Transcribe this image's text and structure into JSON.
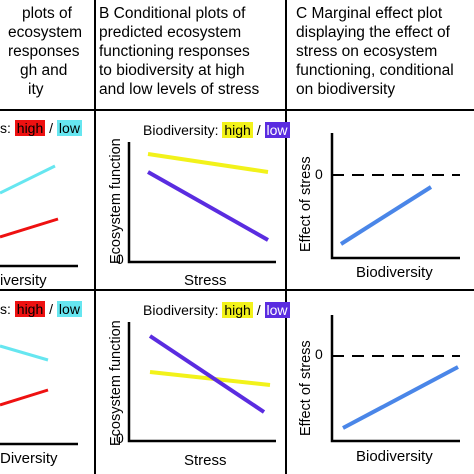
{
  "columns": {
    "a": {
      "lines": [
        "plots of",
        "ecosystem",
        "responses",
        "gh and",
        "ity"
      ]
    },
    "b": {
      "lines": [
        "B Conditional plots of",
        "predicted ecosystem",
        "functioning responses",
        "to biodiversity at high",
        "and low levels of stress"
      ]
    },
    "c": {
      "lines": [
        "C Marginal effect plot",
        "displaying the effect of",
        "stress on ecosystem",
        "functioning, conditional",
        "on biodiversity"
      ]
    }
  },
  "row1": {
    "a": {
      "legend_prefix": "s: ",
      "legend_high": "high",
      "legend_sep": " / ",
      "legend_low": "low",
      "xlabel": "iversity"
    },
    "b": {
      "legend_prefix": "Biodiversity: ",
      "legend_high": "high",
      "legend_sep": " / ",
      "legend_low": "low",
      "ylabel": "Ecosystem function",
      "y0": "0",
      "xlabel": "Stress"
    },
    "c": {
      "ylabel": "Effect of stress",
      "y0": "0",
      "xlabel": "Biodiversity"
    }
  },
  "row2": {
    "a": {
      "legend_prefix": "s: ",
      "legend_high": "high",
      "legend_sep": " / ",
      "legend_low": "low",
      "xlabel": "Diversity"
    },
    "b": {
      "legend_prefix": "Biodiversity: ",
      "legend_high": "high",
      "legend_sep": " / ",
      "legend_low": "low",
      "ylabel": "Ecosystem function",
      "y0": "0",
      "xlabel": "Stress"
    },
    "c": {
      "ylabel": "Effect of stress",
      "y0": "0",
      "xlabel": "Biodiversity"
    }
  },
  "colors": {
    "high_a": "#ee1111",
    "low_a": "#66e6f0",
    "high_b": "#f2f21a",
    "low_b": "#5a2ce0",
    "marginal": "#4a86e8",
    "dashed": "#000000"
  }
}
